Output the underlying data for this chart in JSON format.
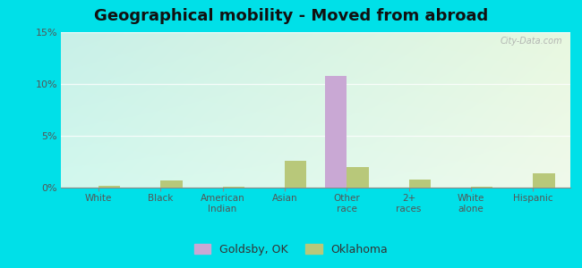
{
  "title": "Geographical mobility - Moved from abroad",
  "categories": [
    "White",
    "Black",
    "American\nIndian",
    "Asian",
    "Other\nrace",
    "2+\nraces",
    "White\nalone",
    "Hispanic"
  ],
  "goldsby_values": [
    0.0,
    0.0,
    0.0,
    0.0,
    10.8,
    0.0,
    0.0,
    0.0
  ],
  "oklahoma_values": [
    0.2,
    0.7,
    0.1,
    2.6,
    2.0,
    0.8,
    0.1,
    1.4
  ],
  "goldsby_color": "#c9a8d4",
  "oklahoma_color": "#b8c87a",
  "ylim": [
    0,
    15
  ],
  "yticks": [
    0,
    5,
    10,
    15
  ],
  "ytick_labels": [
    "0%",
    "5%",
    "10%",
    "15%"
  ],
  "outer_background": "#00e0e8",
  "title_fontsize": 13,
  "legend_labels": [
    "Goldsby, OK",
    "Oklahoma"
  ],
  "bar_width": 0.35,
  "watermark": "City-Data.com",
  "plot_bg_top_left": "#c8f0e8",
  "plot_bg_top_right": "#e8f8e0",
  "plot_bg_bottom_left": "#d8f8f0",
  "plot_bg_bottom_right": "#f0f8e8"
}
